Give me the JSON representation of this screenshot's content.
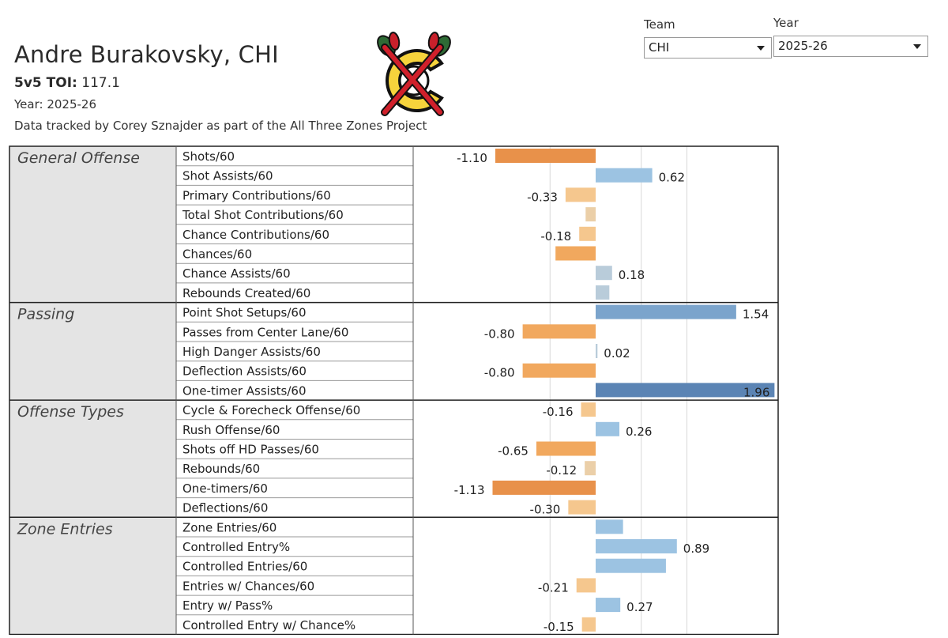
{
  "header": {
    "player_name": "Andre Burakovsky, CHI",
    "toi_label": "5v5 TOI:",
    "toi_value": "117.1",
    "year_line": "Year: 2025-26",
    "credit": "Data tracked by Corey Sznajder as part of the All Three Zones Project"
  },
  "filters": {
    "team": {
      "label": "Team",
      "value": "CHI"
    },
    "year": {
      "label": "Year",
      "value": "2025-26"
    }
  },
  "logo": {
    "name": "blackhawks-logo-crossed-out"
  },
  "colors": {
    "neg_dark": "#e8914a",
    "neg_mid": "#f1a85e",
    "neg_light": "#f5c78e",
    "neg_pale": "#ebcfa8",
    "pos_pale": "#b9ccda",
    "pos_light": "#9cc3e2",
    "pos_mid": "#7ba4cc",
    "pos_dark": "#5b84b4"
  },
  "chart_data": {
    "type": "bar",
    "orientation": "horizontal",
    "xlim": [
      -1.4,
      2.0
    ],
    "gridlines_at": [
      -0.5,
      0,
      0.5,
      1.0
    ],
    "groups": [
      {
        "name": "General Offense",
        "rows": [
          {
            "label": "Shots/60",
            "value": -1.1,
            "value_label": "-1.10"
          },
          {
            "label": "Shot Assists/60",
            "value": 0.62,
            "value_label": "0.62"
          },
          {
            "label": "Primary Contributions/60",
            "value": -0.33,
            "value_label": "-0.33"
          },
          {
            "label": "Total Shot Contributions/60",
            "value": -0.11,
            "value_label": ""
          },
          {
            "label": "Chance Contributions/60",
            "value": -0.18,
            "value_label": "-0.18"
          },
          {
            "label": "Chances/60",
            "value": -0.44,
            "value_label": ""
          },
          {
            "label": "Chance Assists/60",
            "value": 0.18,
            "value_label": "0.18"
          },
          {
            "label": "Rebounds Created/60",
            "value": 0.15,
            "value_label": ""
          }
        ]
      },
      {
        "name": "Passing",
        "rows": [
          {
            "label": "Point Shot Setups/60",
            "value": 1.54,
            "value_label": "1.54"
          },
          {
            "label": "Passes from Center Lane/60",
            "value": -0.8,
            "value_label": "-0.80"
          },
          {
            "label": "High Danger Assists/60",
            "value": 0.02,
            "value_label": "0.02"
          },
          {
            "label": "Deflection Assists/60",
            "value": -0.8,
            "value_label": "-0.80"
          },
          {
            "label": "One-timer Assists/60",
            "value": 1.96,
            "value_label": "1.96"
          }
        ]
      },
      {
        "name": "Offense Types",
        "rows": [
          {
            "label": "Cycle & Forecheck Offense/60",
            "value": -0.16,
            "value_label": "-0.16"
          },
          {
            "label": "Rush Offense/60",
            "value": 0.26,
            "value_label": "0.26"
          },
          {
            "label": "Shots off HD Passes/60",
            "value": -0.65,
            "value_label": "-0.65"
          },
          {
            "label": "Rebounds/60",
            "value": -0.12,
            "value_label": "-0.12"
          },
          {
            "label": "One-timers/60",
            "value": -1.13,
            "value_label": "-1.13"
          },
          {
            "label": "Deflections/60",
            "value": -0.3,
            "value_label": "-0.30"
          }
        ]
      },
      {
        "name": "Zone Entries",
        "rows": [
          {
            "label": "Zone Entries/60",
            "value": 0.3,
            "value_label": ""
          },
          {
            "label": "Controlled Entry%",
            "value": 0.89,
            "value_label": "0.89"
          },
          {
            "label": "Controlled Entries/60",
            "value": 0.77,
            "value_label": ""
          },
          {
            "label": "Entries w/ Chances/60",
            "value": -0.21,
            "value_label": "-0.21"
          },
          {
            "label": "Entry w/ Pass%",
            "value": 0.27,
            "value_label": "0.27"
          },
          {
            "label": "Controlled Entry w/ Chance%",
            "value": -0.15,
            "value_label": "-0.15"
          }
        ]
      }
    ]
  }
}
